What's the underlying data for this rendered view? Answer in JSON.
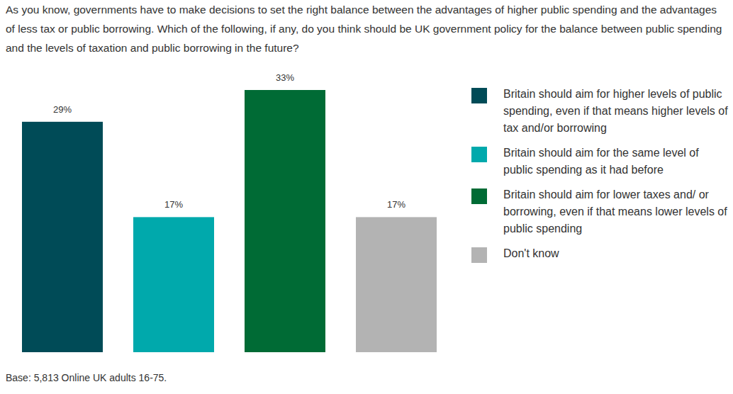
{
  "chart_data": {
    "type": "bar",
    "title": "As you know, governments have to make decisions to set the right balance between the advantages of higher public spending and the advantages of less tax or public borrowing. Which of the following, if any, do you think should be UK government policy for the balance between public spending and the levels of taxation and public borrowing in the future?",
    "categories": [
      "Britain should aim for higher levels of public spending, even if that means higher levels of tax and/or borrowing",
      "Britain should aim for the same level of public spending as it had before",
      "Britain should aim for lower taxes and/ or borrowing, even if that means lower levels of public spending",
      "Don't know"
    ],
    "values": [
      29,
      17,
      33,
      17
    ],
    "value_labels": [
      "29%",
      "17%",
      "33%",
      "17%"
    ],
    "colors": [
      "#004b57",
      "#00a9ac",
      "#006b35",
      "#b3b3b3"
    ],
    "ylim": [
      0,
      33
    ],
    "data_labels": true,
    "tick_labels": false,
    "legend": "right",
    "caption": "Base: 5,813 Online UK adults 16-75."
  }
}
